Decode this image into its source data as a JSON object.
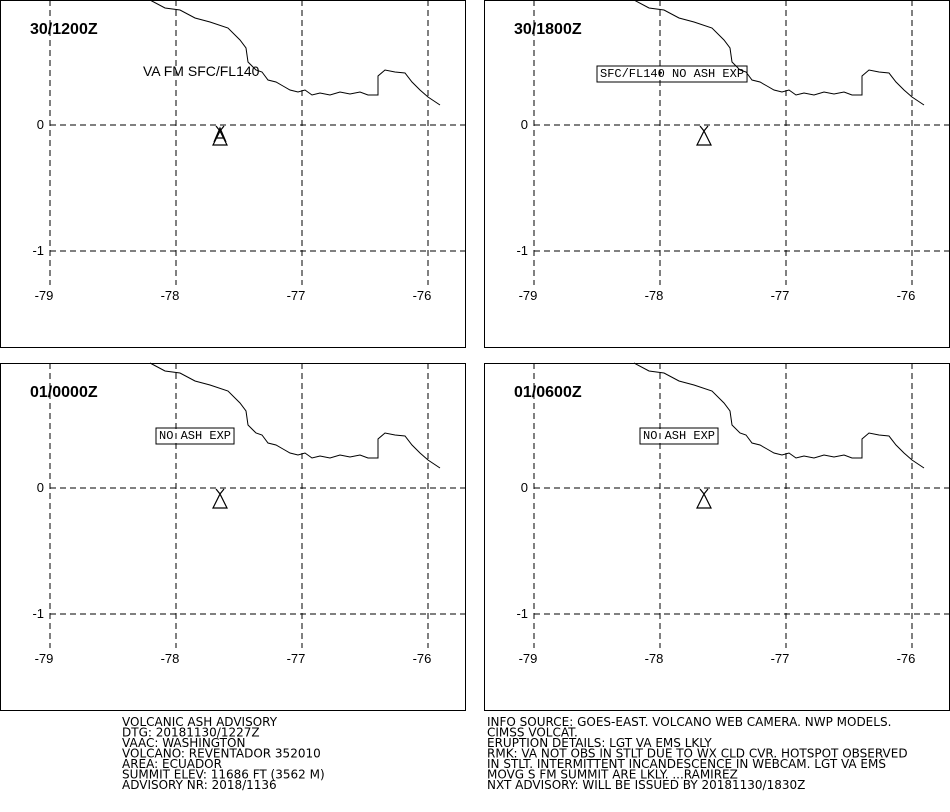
{
  "panels": [
    {
      "time": "30/1200Z",
      "annotation": "VA FM SFC/FL140",
      "boxed": false
    },
    {
      "time": "30/1800Z",
      "annotation": "SFC/FL140 NO ASH EXP",
      "boxed": true
    },
    {
      "time": "01/0000Z",
      "annotation": "NO ASH EXP",
      "boxed": true
    },
    {
      "time": "01/0600Z",
      "annotation": "NO ASH EXP",
      "boxed": true
    }
  ],
  "lon_ticks": [
    -79,
    -78,
    -77,
    -76
  ],
  "lat_ticks": [
    0,
    -1
  ],
  "advisory_left": [
    "VOLCANIC ASH ADVISORY",
    "DTG: 20181130/1227Z",
    "VAAC: WASHINGTON",
    "VOLCANO: REVENTADOR 352010",
    "AREA: ECUADOR",
    "SUMMIT ELEV: 11686 FT (3562 M)",
    "ADVISORY NR: 2018/1136"
  ],
  "advisory_right": [
    "INFO SOURCE: GOES-EAST. VOLCANO WEB CAMERA. NWP MODELS.",
    "CIMSS VOLCAT.",
    "ERUPTION DETAILS: LGT VA EMS LKLY",
    "RMK: VA NOT OBS IN STLT DUE TO WX CLD CVR. HOTSPOT OBSERVED",
    "IN STLT. INTERMITTENT INCANDESCENCE IN WEBCAM. LGT VA EMS",
    "MOVG S FM SUMMIT ARE LKLY. ...RAMIREZ",
    "NXT ADVISORY: WILL BE ISSUED BY 20181130/1830Z"
  ]
}
